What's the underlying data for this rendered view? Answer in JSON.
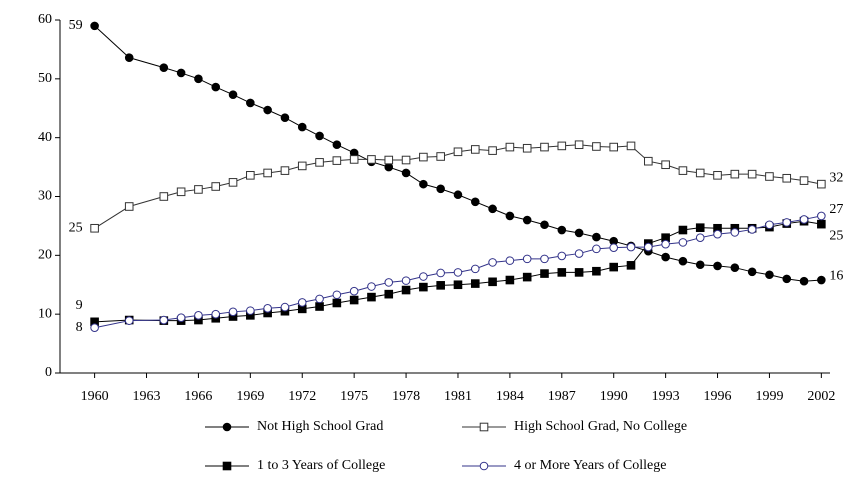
{
  "chart_data": {
    "type": "line",
    "x": [
      1960,
      1962,
      1964,
      1965,
      1966,
      1967,
      1968,
      1969,
      1970,
      1971,
      1972,
      1973,
      1974,
      1975,
      1976,
      1977,
      1978,
      1979,
      1980,
      1981,
      1982,
      1983,
      1984,
      1985,
      1986,
      1987,
      1988,
      1989,
      1990,
      1991,
      1992,
      1993,
      1994,
      1995,
      1996,
      1997,
      1998,
      1999,
      2000,
      2001,
      2002
    ],
    "xlim": [
      1958,
      2002.5
    ],
    "xticks": [
      1960,
      1963,
      1966,
      1969,
      1972,
      1975,
      1978,
      1981,
      1984,
      1987,
      1990,
      1993,
      1996,
      1999,
      2002
    ],
    "ylim": [
      0,
      60
    ],
    "yticks": [
      0,
      10,
      20,
      30,
      40,
      50,
      60
    ],
    "series": [
      {
        "name": "Not High School Grad",
        "color": "#000000",
        "marker": "circle",
        "filled": true,
        "values": [
          59,
          53.6,
          51.9,
          51.0,
          50.0,
          48.6,
          47.3,
          45.9,
          44.7,
          43.4,
          41.8,
          40.3,
          38.8,
          37.4,
          35.9,
          35.0,
          34.0,
          32.1,
          31.3,
          30.3,
          29.1,
          27.9,
          26.7,
          26.0,
          25.2,
          24.3,
          23.8,
          23.1,
          22.4,
          21.6,
          20.7,
          19.7,
          19.0,
          18.4,
          18.2,
          17.9,
          17.2,
          16.7,
          16.0,
          15.6,
          15.8
        ],
        "value_labels": [
          "59",
          null,
          null,
          null,
          null,
          null,
          null,
          null,
          null,
          null,
          null,
          null,
          null,
          null,
          null,
          null,
          null,
          null,
          null,
          null,
          null,
          null,
          null,
          null,
          null,
          null,
          null,
          null,
          null,
          null,
          null,
          null,
          null,
          null,
          null,
          null,
          null,
          null,
          null,
          null,
          "16"
        ]
      },
      {
        "name": "High School Grad, No College",
        "color": "#333333",
        "marker": "square",
        "filled": false,
        "values": [
          24.6,
          28.3,
          30.0,
          30.8,
          31.2,
          31.7,
          32.4,
          33.6,
          34.0,
          34.4,
          35.2,
          35.8,
          36.1,
          36.3,
          36.3,
          36.2,
          36.2,
          36.7,
          36.8,
          37.6,
          38.0,
          37.8,
          38.4,
          38.2,
          38.4,
          38.6,
          38.8,
          38.5,
          38.4,
          38.6,
          36.0,
          35.4,
          34.4,
          34.0,
          33.6,
          33.8,
          33.8,
          33.4,
          33.1,
          32.7,
          32.1
        ],
        "value_labels": [
          "25",
          null,
          null,
          null,
          null,
          null,
          null,
          null,
          null,
          null,
          null,
          null,
          null,
          null,
          null,
          null,
          null,
          null,
          null,
          null,
          null,
          null,
          null,
          null,
          null,
          null,
          null,
          null,
          null,
          null,
          null,
          null,
          null,
          null,
          null,
          null,
          null,
          null,
          null,
          null,
          "32"
        ]
      },
      {
        "name": "1 to 3 Years of College",
        "color": "#000000",
        "marker": "square",
        "filled": true,
        "values": [
          8.7,
          9.0,
          8.9,
          8.9,
          9.0,
          9.3,
          9.6,
          9.8,
          10.2,
          10.5,
          10.9,
          11.3,
          11.9,
          12.4,
          12.9,
          13.4,
          14.1,
          14.6,
          14.9,
          15.0,
          15.2,
          15.5,
          15.8,
          16.3,
          16.9,
          17.1,
          17.1,
          17.3,
          18.0,
          18.3,
          22.0,
          23.0,
          24.3,
          24.7,
          24.6,
          24.6,
          24.6,
          24.8,
          25.4,
          25.8,
          25.3
        ],
        "value_labels": [
          "9",
          null,
          null,
          null,
          null,
          null,
          null,
          null,
          null,
          null,
          null,
          null,
          null,
          null,
          null,
          null,
          null,
          null,
          null,
          null,
          null,
          null,
          null,
          null,
          null,
          null,
          null,
          null,
          null,
          null,
          null,
          null,
          null,
          null,
          null,
          null,
          null,
          null,
          null,
          null,
          "25"
        ]
      },
      {
        "name": "4 or More Years of College",
        "color": "#33338a",
        "marker": "circle",
        "filled": false,
        "values": [
          7.7,
          8.9,
          9.0,
          9.4,
          9.8,
          10.0,
          10.4,
          10.6,
          11.0,
          11.2,
          12.0,
          12.6,
          13.3,
          13.9,
          14.7,
          15.4,
          15.7,
          16.4,
          17.0,
          17.1,
          17.7,
          18.8,
          19.1,
          19.4,
          19.4,
          19.9,
          20.3,
          21.1,
          21.3,
          21.4,
          21.4,
          21.9,
          22.2,
          23.0,
          23.6,
          23.9,
          24.4,
          25.2,
          25.6,
          26.1,
          26.7
        ],
        "value_labels": [
          "8",
          null,
          null,
          null,
          null,
          null,
          null,
          null,
          null,
          null,
          null,
          null,
          null,
          null,
          null,
          null,
          null,
          null,
          null,
          null,
          null,
          null,
          null,
          null,
          null,
          null,
          null,
          null,
          null,
          null,
          null,
          null,
          null,
          null,
          null,
          null,
          null,
          null,
          null,
          null,
          "27"
        ]
      }
    ]
  }
}
